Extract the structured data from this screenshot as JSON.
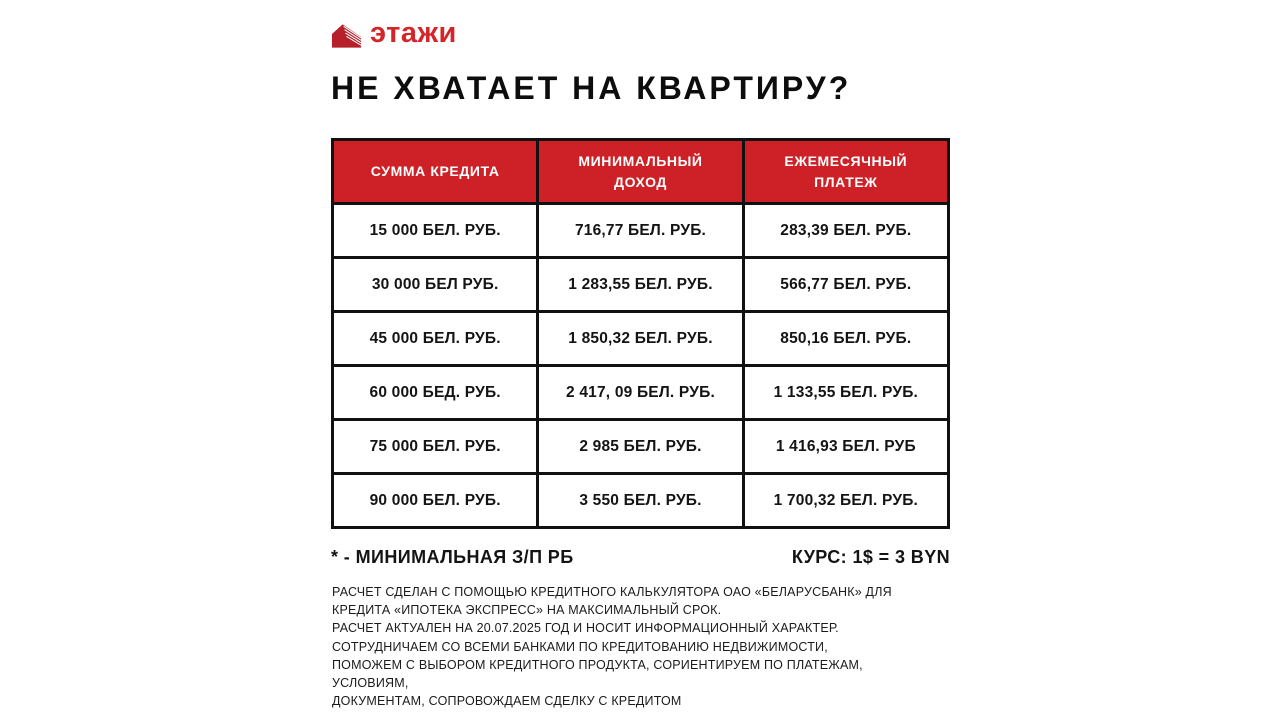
{
  "colors": {
    "brand_red": "#ce2127",
    "logo_red": "#d2262b",
    "border_black": "#111111",
    "header_text": "#ffffff"
  },
  "logo": {
    "icon": "building-icon",
    "text": "этажи"
  },
  "title": "НЕ ХВАТАЕТ НА КВАРТИРУ?",
  "table": {
    "headers": [
      "СУММА КРЕДИТА",
      "МИНИМАЛЬНЫЙ ДОХОД",
      "ЕЖЕМЕСЯЧНЫЙ ПЛАТЕЖ"
    ],
    "rows": [
      [
        "15 000 БЕЛ. РУБ.",
        "716,77 БЕЛ. РУБ.",
        "283,39 БЕЛ. РУБ."
      ],
      [
        "30 000 БЕЛ РУБ.",
        "1 283,55 БЕЛ. РУБ.",
        "566,77 БЕЛ. РУБ."
      ],
      [
        "45 000 БЕЛ. РУБ.",
        "1 850,32 БЕЛ. РУБ.",
        "850,16 БЕЛ. РУБ."
      ],
      [
        "60 000 БЕД. РУБ.",
        "2 417, 09 БЕЛ. РУБ.",
        "1 133,55 БЕЛ. РУБ."
      ],
      [
        "75 000 БЕЛ. РУБ.",
        "2 985 БЕЛ. РУБ.",
        "1 416,93 БЕЛ. РУБ"
      ],
      [
        "90 000 БЕЛ. РУБ.",
        "3 550 БЕЛ. РУБ.",
        "1 700,32 БЕЛ. РУБ."
      ]
    ]
  },
  "notes": {
    "left": "* - МИНИМАЛЬНАЯ З/П РБ",
    "right": "КУРС: 1$ = 3 BYN"
  },
  "disclaimer": {
    "lines": [
      "РАСЧЕТ СДЕЛАН С ПОМОЩЬЮ КРЕДИТНОГО КАЛЬКУЛЯТОРА ОАО «БЕЛАРУСБАНК» ДЛЯ",
      "КРЕДИТА «ИПОТЕКА ЭКСПРЕСС» НА МАКСИМАЛЬНЫЙ СРОК.",
      "РАСЧЕТ АКТУАЛЕН НА 20.07.2025 ГОД И НОСИТ ИНФОРМАЦИОННЫЙ ХАРАКТЕР.",
      "СОТРУДНИЧАЕМ СО ВСЕМИ БАНКАМИ ПО КРЕДИТОВАНИЮ НЕДВИЖИМОСТИ,",
      "ПОМОЖЕМ С ВЫБОРОМ КРЕДИТНОГО ПРОДУКТА, СОРИЕНТИРУЕМ ПО ПЛАТЕЖАМ,",
      "УСЛОВИЯМ,",
      "ДОКУМЕНТАМ, СОПРОВОЖДАЕМ СДЕЛКУ С КРЕДИТОМ"
    ]
  }
}
